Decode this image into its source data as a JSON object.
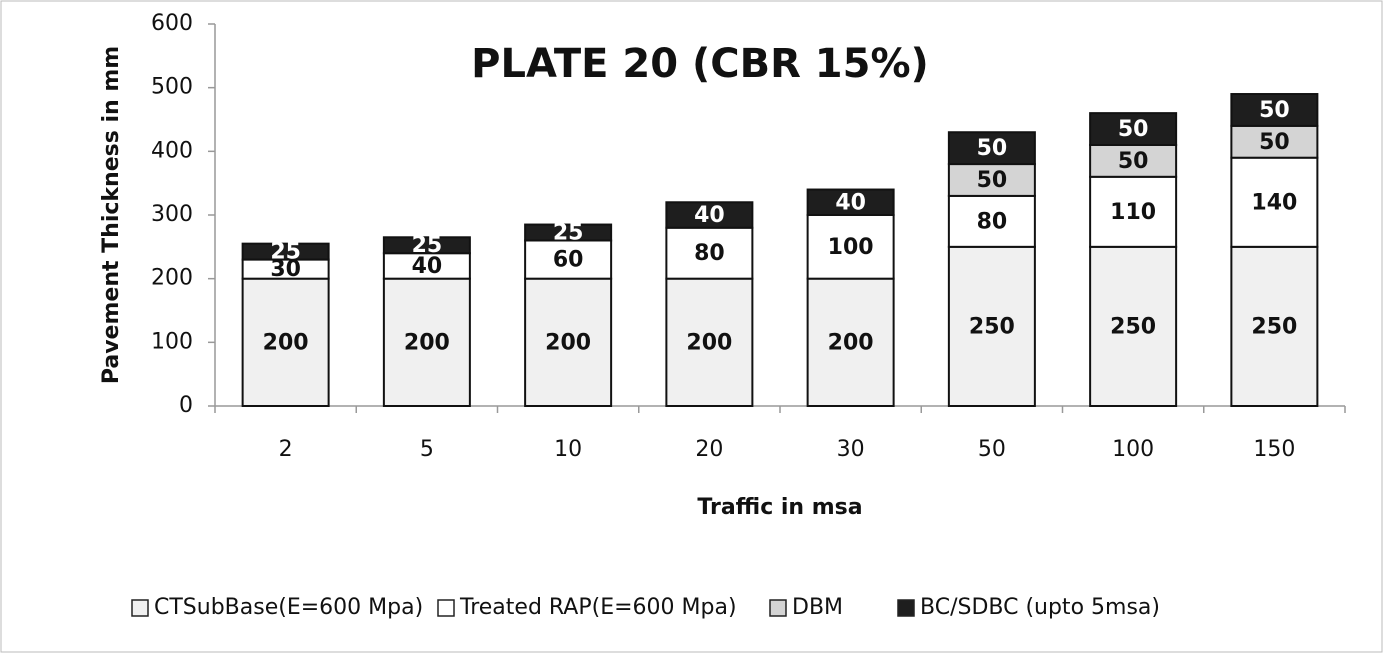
{
  "chart_data": {
    "type": "stacked_bar",
    "title": "PLATE 20 (CBR 15%)",
    "x_label": "Traffic in msa",
    "y_label": "Pavement Thickness in mm",
    "categories": [
      "2",
      "5",
      "10",
      "20",
      "30",
      "50",
      "100",
      "150"
    ],
    "series": [
      {
        "name": "CTSubBase(E=600 Mpa)",
        "color": "#f0f0f0",
        "values": [
          200,
          200,
          200,
          200,
          200,
          250,
          250,
          250
        ]
      },
      {
        "name": "Treated RAP(E=600 Mpa)",
        "color": "#ffffff",
        "values": [
          30,
          40,
          60,
          80,
          100,
          80,
          110,
          140
        ]
      },
      {
        "name": "DBM",
        "color": "#d4d4d4",
        "values": [
          null,
          null,
          null,
          null,
          null,
          50,
          50,
          50
        ]
      },
      {
        "name": "BC/SDBC (upto 5msa)",
        "color": "#1e1e1e",
        "values": [
          25,
          25,
          25,
          40,
          40,
          50,
          50,
          50
        ]
      }
    ],
    "ylim": [
      0,
      600
    ],
    "yticks": [
      0,
      100,
      200,
      300,
      400,
      500,
      600
    ],
    "legend": "bottom"
  }
}
